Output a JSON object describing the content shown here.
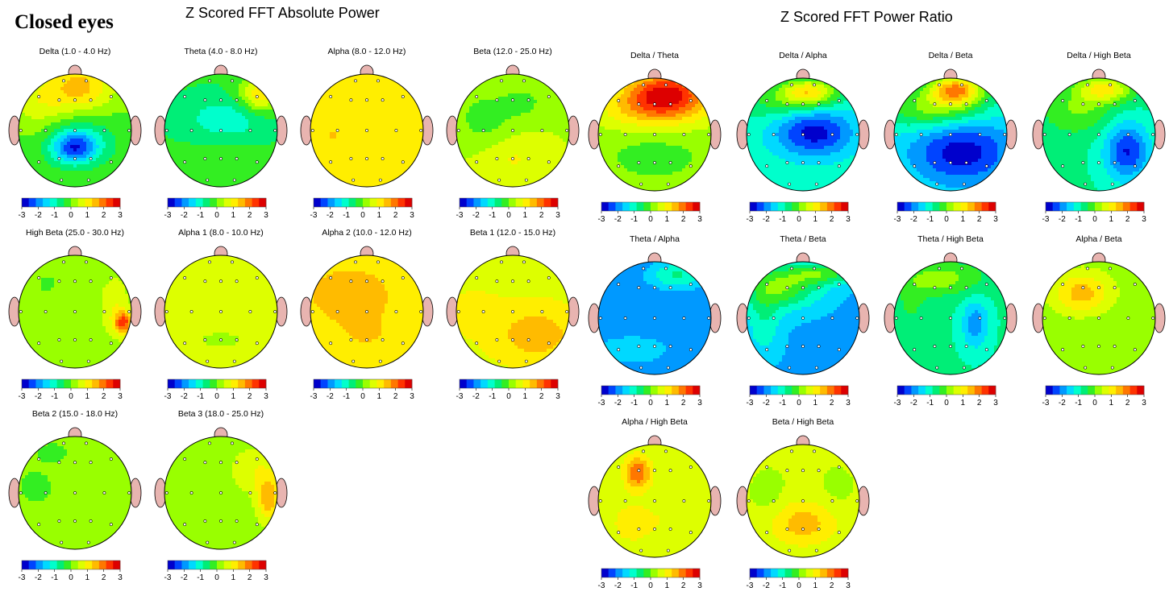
{
  "condition_label": "Closed eyes",
  "absolute_power": {
    "title": "Z Scored FFT Absolute Power",
    "maps": [
      {
        "label": "Delta (1.0 - 4.0 Hz)",
        "base": 0,
        "blobs": [
          [
            0.55,
            0.92,
            1.0,
            0.24,
            0.2
          ],
          [
            0.5,
            0.78,
            0.7,
            0.42,
            0.24
          ],
          [
            0.18,
            0.7,
            0.6,
            0.25,
            0.35
          ],
          [
            0.5,
            0.35,
            -2.0,
            0.2,
            0.14
          ],
          [
            0.5,
            0.45,
            -0.8,
            0.45,
            0.3
          ]
        ]
      },
      {
        "label": "Theta (4.0 - 8.0 Hz)",
        "base": -0.4,
        "blobs": [
          [
            0.85,
            0.82,
            1.6,
            0.18,
            0.16
          ],
          [
            0.55,
            0.6,
            -0.8,
            0.35,
            0.18
          ],
          [
            0.5,
            0.2,
            0.2,
            0.4,
            0.2
          ]
        ]
      },
      {
        "label": "Alpha (8.0 - 12.0 Hz)",
        "base": 0.9,
        "blobs": [
          [
            0.2,
            0.45,
            0.4,
            0.2,
            0.2
          ],
          [
            0.8,
            0.5,
            0.1,
            0.2,
            0.3
          ]
        ]
      },
      {
        "label": "Beta (12.0 - 25.0 Hz)",
        "base": 0.4,
        "blobs": [
          [
            0.25,
            0.6,
            -0.6,
            0.25,
            0.25
          ],
          [
            0.6,
            0.75,
            -0.5,
            0.2,
            0.15
          ],
          [
            0.5,
            0.25,
            0.5,
            0.3,
            0.2
          ]
        ]
      },
      {
        "label": "High Beta (25.0 - 30.0 Hz)",
        "base": 0.2,
        "blobs": [
          [
            0.93,
            0.4,
            2.0,
            0.08,
            0.1
          ],
          [
            0.85,
            0.55,
            0.6,
            0.12,
            0.25
          ],
          [
            0.25,
            0.75,
            -0.3,
            0.1,
            0.1
          ]
        ]
      },
      {
        "label": "Alpha 1 (8.0 - 10.0 Hz)",
        "base": 0.7,
        "blobs": [
          [
            0.5,
            0.25,
            -0.3,
            0.5,
            0.2
          ],
          [
            0.5,
            0.5,
            0.2,
            0.5,
            0.1
          ]
        ]
      },
      {
        "label": "Alpha 2 (10.0 - 12.0 Hz)",
        "base": 1.1,
        "blobs": [
          [
            0.35,
            0.65,
            0.6,
            0.3,
            0.2
          ],
          [
            0.5,
            0.3,
            0.2,
            0.3,
            0.2
          ]
        ]
      },
      {
        "label": "Beta 1 (12.0 - 15.0 Hz)",
        "base": 0.8,
        "blobs": [
          [
            0.7,
            0.3,
            0.9,
            0.3,
            0.2
          ],
          [
            0.3,
            0.8,
            -0.2,
            0.2,
            0.1
          ],
          [
            0.2,
            0.5,
            0.2,
            0.2,
            0.2
          ]
        ]
      },
      {
        "label": "Beta 2 (15.0 - 18.0 Hz)",
        "base": 0.15,
        "blobs": [
          [
            0.15,
            0.55,
            -0.5,
            0.12,
            0.12
          ],
          [
            0.3,
            0.85,
            -0.3,
            0.15,
            0.1
          ]
        ]
      },
      {
        "label": "Beta 3 (18.0 - 25.0 Hz)",
        "base": 0.2,
        "blobs": [
          [
            0.92,
            0.45,
            1.4,
            0.1,
            0.2
          ],
          [
            0.8,
            0.7,
            0.6,
            0.2,
            0.2
          ]
        ]
      }
    ]
  },
  "power_ratio": {
    "title": "Z Scored FFT Power Ratio",
    "maps": [
      {
        "label": "Delta / Theta",
        "base": 0.2,
        "blobs": [
          [
            0.6,
            0.88,
            2.2,
            0.35,
            0.18
          ],
          [
            0.5,
            0.72,
            1.2,
            0.5,
            0.18
          ],
          [
            0.5,
            0.3,
            -0.4,
            0.4,
            0.2
          ]
        ]
      },
      {
        "label": "Delta / Alpha",
        "base": -1.0,
        "blobs": [
          [
            0.6,
            0.52,
            -1.8,
            0.35,
            0.22
          ],
          [
            0.55,
            0.88,
            2.0,
            0.25,
            0.12
          ],
          [
            0.35,
            0.78,
            0.8,
            0.4,
            0.15
          ]
        ]
      },
      {
        "label": "Delta / Beta",
        "base": -1.2,
        "blobs": [
          [
            0.6,
            0.35,
            -1.6,
            0.45,
            0.3
          ],
          [
            0.55,
            0.9,
            2.8,
            0.25,
            0.14
          ],
          [
            0.35,
            0.72,
            1.4,
            0.45,
            0.18
          ]
        ]
      },
      {
        "label": "Delta / High Beta",
        "base": -0.8,
        "blobs": [
          [
            0.75,
            0.35,
            -1.8,
            0.2,
            0.25
          ],
          [
            0.55,
            0.9,
            1.8,
            0.25,
            0.12
          ],
          [
            0.3,
            0.7,
            0.8,
            0.3,
            0.2
          ]
        ]
      },
      {
        "label": "Theta / Alpha",
        "base": -2.0,
        "blobs": [
          [
            0.7,
            0.88,
            1.2,
            0.25,
            0.12
          ],
          [
            0.3,
            0.22,
            0.5,
            0.4,
            0.15
          ]
        ]
      },
      {
        "label": "Theta / Beta",
        "base": -1.8,
        "blobs": [
          [
            0.3,
            0.78,
            1.8,
            0.35,
            0.2
          ],
          [
            0.7,
            0.9,
            1.4,
            0.3,
            0.1
          ],
          [
            0.15,
            0.45,
            0.8,
            0.15,
            0.3
          ]
        ]
      },
      {
        "label": "Theta / High Beta",
        "base": -0.8,
        "blobs": [
          [
            0.72,
            0.45,
            -1.2,
            0.12,
            0.22
          ],
          [
            0.4,
            0.85,
            1.0,
            0.4,
            0.15
          ],
          [
            0.15,
            0.6,
            0.4,
            0.15,
            0.2
          ]
        ]
      },
      {
        "label": "Alpha / Beta",
        "base": 0.2,
        "blobs": [
          [
            0.35,
            0.72,
            1.3,
            0.25,
            0.18
          ],
          [
            0.5,
            0.3,
            -0.2,
            0.3,
            0.2
          ]
        ]
      },
      {
        "label": "Alpha / High Beta",
        "base": 0.5,
        "blobs": [
          [
            0.35,
            0.75,
            1.6,
            0.12,
            0.15
          ],
          [
            0.65,
            0.35,
            0.3,
            0.2,
            0.2
          ],
          [
            0.3,
            0.3,
            0.6,
            0.2,
            0.2
          ]
        ]
      },
      {
        "label": "Beta / High Beta",
        "base": 0.5,
        "blobs": [
          [
            0.5,
            0.3,
            1.0,
            0.3,
            0.2
          ],
          [
            0.2,
            0.55,
            -0.3,
            0.15,
            0.2
          ],
          [
            0.8,
            0.6,
            -0.2,
            0.15,
            0.2
          ]
        ]
      }
    ]
  },
  "colorbar": {
    "ticks": [
      "-3",
      "-2",
      "-1",
      "0",
      "1",
      "2",
      "3"
    ],
    "colors": [
      "#0000cc",
      "#0044ff",
      "#0099ff",
      "#00d9ff",
      "#00ffcc",
      "#00ee77",
      "#33ee22",
      "#99ff00",
      "#ddff00",
      "#ffee00",
      "#ffbb00",
      "#ff7700",
      "#ff3300",
      "#dd0000"
    ]
  },
  "head": {
    "fill": "#ffffff",
    "outline": "#000000",
    "ear_color": "#e8b4b0"
  }
}
